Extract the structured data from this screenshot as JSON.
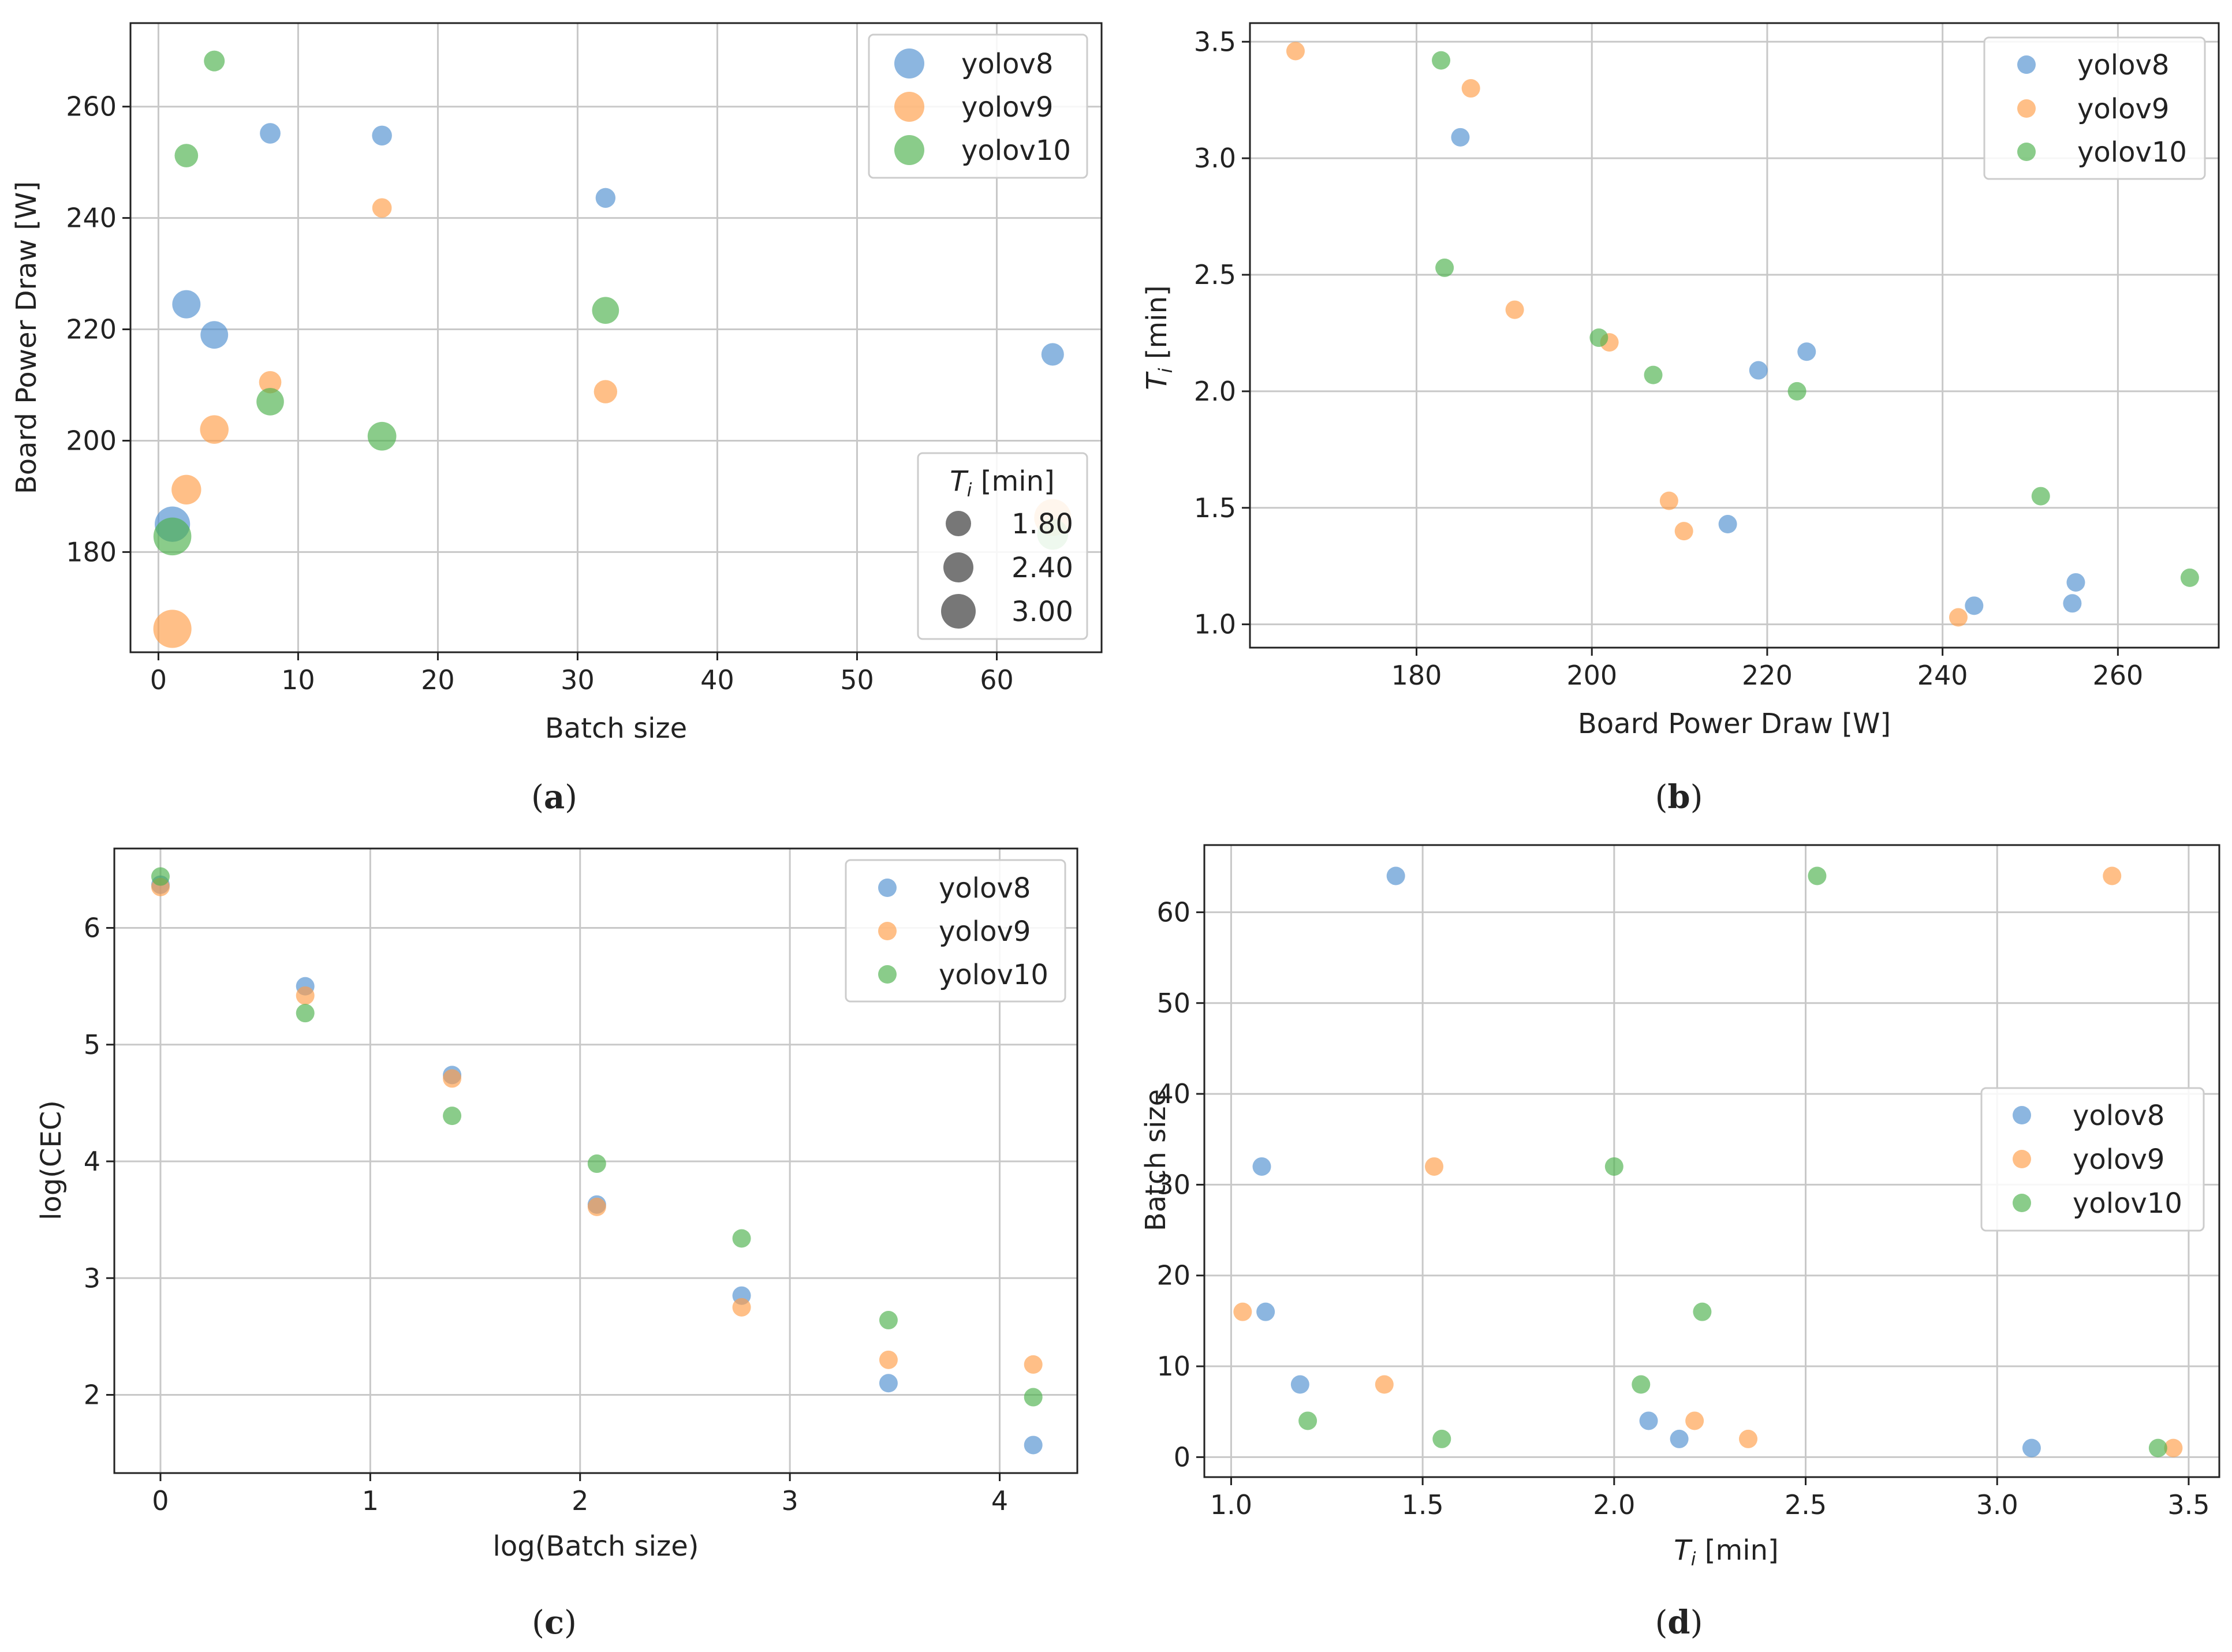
{
  "colors": {
    "yolov8": "#4e8fd0",
    "yolov9": "#ff9d47",
    "yolov10": "#4bb14b",
    "grid": "#c8c8c8",
    "axis": "#222222",
    "size_legend": "#555555"
  },
  "chart_data": [
    {
      "id": "a",
      "panel_label": "a",
      "type": "scatter",
      "title": "",
      "xlabel": "Batch size",
      "ylabel": "Board Power Draw [W]",
      "xlim": [
        -2,
        67.5
      ],
      "ylim": [
        162,
        275
      ],
      "xticks": [
        0,
        10,
        20,
        30,
        40,
        50,
        60
      ],
      "yticks": [
        180,
        200,
        220,
        240,
        260
      ],
      "grid": true,
      "legend_position": "top-right",
      "marker_size_variable": "T_i [min]",
      "size_legend": {
        "title_main": "T",
        "title_sub": "i",
        "title_rest": " [min]",
        "position": "bottom-right",
        "entries": [
          {
            "label": "1.80",
            "value": 1.8
          },
          {
            "label": "2.40",
            "value": 2.4
          },
          {
            "label": "3.00",
            "value": 3.0
          }
        ]
      },
      "series": [
        {
          "name": "yolov8",
          "color_key": "yolov8",
          "points": [
            {
              "x": 1,
              "y": 185,
              "s": 3.09
            },
            {
              "x": 2,
              "y": 224.5,
              "s": 2.17
            },
            {
              "x": 4,
              "y": 219,
              "s": 2.09
            },
            {
              "x": 8,
              "y": 255.2,
              "s": 1.18
            },
            {
              "x": 16,
              "y": 254.8,
              "s": 1.09
            },
            {
              "x": 32,
              "y": 243.6,
              "s": 1.08
            },
            {
              "x": 64,
              "y": 215.5,
              "s": 1.43
            }
          ]
        },
        {
          "name": "yolov9",
          "color_key": "yolov9",
          "points": [
            {
              "x": 1,
              "y": 166.2,
              "s": 3.46
            },
            {
              "x": 2,
              "y": 191.2,
              "s": 2.35
            },
            {
              "x": 4,
              "y": 202,
              "s": 2.21
            },
            {
              "x": 8,
              "y": 210.5,
              "s": 1.4
            },
            {
              "x": 16,
              "y": 241.8,
              "s": 1.03
            },
            {
              "x": 32,
              "y": 208.8,
              "s": 1.53
            },
            {
              "x": 64,
              "y": 186.2,
              "s": 3.3
            }
          ]
        },
        {
          "name": "yolov10",
          "color_key": "yolov10",
          "points": [
            {
              "x": 1,
              "y": 182.8,
              "s": 3.42
            },
            {
              "x": 2,
              "y": 251.2,
              "s": 1.55
            },
            {
              "x": 4,
              "y": 268.2,
              "s": 1.2
            },
            {
              "x": 8,
              "y": 207,
              "s": 2.07
            },
            {
              "x": 16,
              "y": 200.8,
              "s": 2.23
            },
            {
              "x": 32,
              "y": 223.4,
              "s": 2.0
            },
            {
              "x": 64,
              "y": 183.2,
              "s": 2.53
            }
          ]
        }
      ]
    },
    {
      "id": "b",
      "panel_label": "b",
      "type": "scatter",
      "title": "",
      "xlabel": "Board Power Draw [W]",
      "ylabel": "T_i [min]",
      "ylabel_main": "T",
      "ylabel_sub": "i",
      "ylabel_rest": " [min]",
      "xlim": [
        161,
        271.5
      ],
      "ylim": [
        0.9,
        3.58
      ],
      "xticks": [
        180,
        200,
        220,
        240,
        260
      ],
      "yticks": [
        1.0,
        1.5,
        2.0,
        2.5,
        3.0,
        3.5
      ],
      "ytick_labels": [
        "1.0",
        "1.5",
        "2.0",
        "2.5",
        "3.0",
        "3.5"
      ],
      "grid": true,
      "legend_position": "top-right",
      "series": [
        {
          "name": "yolov8",
          "color_key": "yolov8",
          "points": [
            {
              "x": 185,
              "y": 3.09
            },
            {
              "x": 224.5,
              "y": 2.17
            },
            {
              "x": 219,
              "y": 2.09
            },
            {
              "x": 255.2,
              "y": 1.18
            },
            {
              "x": 254.8,
              "y": 1.09
            },
            {
              "x": 243.6,
              "y": 1.08
            },
            {
              "x": 215.5,
              "y": 1.43
            }
          ]
        },
        {
          "name": "yolov9",
          "color_key": "yolov9",
          "points": [
            {
              "x": 166.2,
              "y": 3.46
            },
            {
              "x": 191.2,
              "y": 2.35
            },
            {
              "x": 202,
              "y": 2.21
            },
            {
              "x": 210.5,
              "y": 1.4
            },
            {
              "x": 241.8,
              "y": 1.03
            },
            {
              "x": 208.8,
              "y": 1.53
            },
            {
              "x": 186.2,
              "y": 3.3
            }
          ]
        },
        {
          "name": "yolov10",
          "color_key": "yolov10",
          "points": [
            {
              "x": 182.8,
              "y": 3.42
            },
            {
              "x": 251.2,
              "y": 1.55
            },
            {
              "x": 268.2,
              "y": 1.2
            },
            {
              "x": 207,
              "y": 2.07
            },
            {
              "x": 200.8,
              "y": 2.23
            },
            {
              "x": 223.4,
              "y": 2.0
            },
            {
              "x": 183.2,
              "y": 2.53
            }
          ]
        }
      ]
    },
    {
      "id": "c",
      "panel_label": "c",
      "type": "scatter",
      "title": "",
      "xlabel": "log(Batch size)",
      "ylabel": "log(CEC)",
      "xlim": [
        -0.22,
        4.37
      ],
      "ylim": [
        1.33,
        6.68
      ],
      "xticks": [
        0,
        1,
        2,
        3,
        4
      ],
      "yticks": [
        2,
        3,
        4,
        5,
        6
      ],
      "grid": true,
      "legend_position": "top-right",
      "series": [
        {
          "name": "yolov8",
          "color_key": "yolov8",
          "points": [
            {
              "x": 0,
              "y": 6.37
            },
            {
              "x": 0.69,
              "y": 5.5
            },
            {
              "x": 1.39,
              "y": 4.74
            },
            {
              "x": 2.08,
              "y": 3.63
            },
            {
              "x": 2.77,
              "y": 2.85
            },
            {
              "x": 3.47,
              "y": 2.1
            },
            {
              "x": 4.16,
              "y": 1.57
            }
          ]
        },
        {
          "name": "yolov9",
          "color_key": "yolov9",
          "points": [
            {
              "x": 0,
              "y": 6.35
            },
            {
              "x": 0.69,
              "y": 5.42
            },
            {
              "x": 1.39,
              "y": 4.71
            },
            {
              "x": 2.08,
              "y": 3.61
            },
            {
              "x": 2.77,
              "y": 2.75
            },
            {
              "x": 3.47,
              "y": 2.3
            },
            {
              "x": 4.16,
              "y": 2.26
            }
          ]
        },
        {
          "name": "yolov10",
          "color_key": "yolov10",
          "points": [
            {
              "x": 0,
              "y": 6.44
            },
            {
              "x": 0.69,
              "y": 5.27
            },
            {
              "x": 1.39,
              "y": 4.39
            },
            {
              "x": 2.08,
              "y": 3.98
            },
            {
              "x": 2.77,
              "y": 3.34
            },
            {
              "x": 3.47,
              "y": 2.64
            },
            {
              "x": 4.16,
              "y": 1.98
            }
          ]
        }
      ]
    },
    {
      "id": "d",
      "panel_label": "d",
      "type": "scatter",
      "title": "",
      "xlabel": "T_i [min]",
      "xlabel_main": "T",
      "xlabel_sub": "i",
      "xlabel_rest": " [min]",
      "ylabel": "Batch size",
      "xlim": [
        0.93,
        3.58
      ],
      "ylim": [
        -2.2,
        67.4
      ],
      "xticks": [
        1.0,
        1.5,
        2.0,
        2.5,
        3.0,
        3.5
      ],
      "xtick_labels": [
        "1.0",
        "1.5",
        "2.0",
        "2.5",
        "3.0",
        "3.5"
      ],
      "yticks": [
        0,
        10,
        20,
        30,
        40,
        50,
        60
      ],
      "grid": true,
      "legend_position": "center-right",
      "series": [
        {
          "name": "yolov8",
          "color_key": "yolov8",
          "points": [
            {
              "x": 3.09,
              "y": 1
            },
            {
              "x": 2.17,
              "y": 2
            },
            {
              "x": 2.09,
              "y": 4
            },
            {
              "x": 1.18,
              "y": 8
            },
            {
              "x": 1.09,
              "y": 16
            },
            {
              "x": 1.08,
              "y": 32
            },
            {
              "x": 1.43,
              "y": 64
            }
          ]
        },
        {
          "name": "yolov9",
          "color_key": "yolov9",
          "points": [
            {
              "x": 3.46,
              "y": 1
            },
            {
              "x": 2.35,
              "y": 2
            },
            {
              "x": 2.21,
              "y": 4
            },
            {
              "x": 1.4,
              "y": 8
            },
            {
              "x": 1.03,
              "y": 16
            },
            {
              "x": 1.53,
              "y": 32
            },
            {
              "x": 3.3,
              "y": 64
            }
          ]
        },
        {
          "name": "yolov10",
          "color_key": "yolov10",
          "points": [
            {
              "x": 3.42,
              "y": 1
            },
            {
              "x": 1.55,
              "y": 2
            },
            {
              "x": 1.2,
              "y": 4
            },
            {
              "x": 2.07,
              "y": 8
            },
            {
              "x": 2.23,
              "y": 16
            },
            {
              "x": 2.0,
              "y": 32
            },
            {
              "x": 2.53,
              "y": 64
            }
          ]
        }
      ]
    }
  ]
}
